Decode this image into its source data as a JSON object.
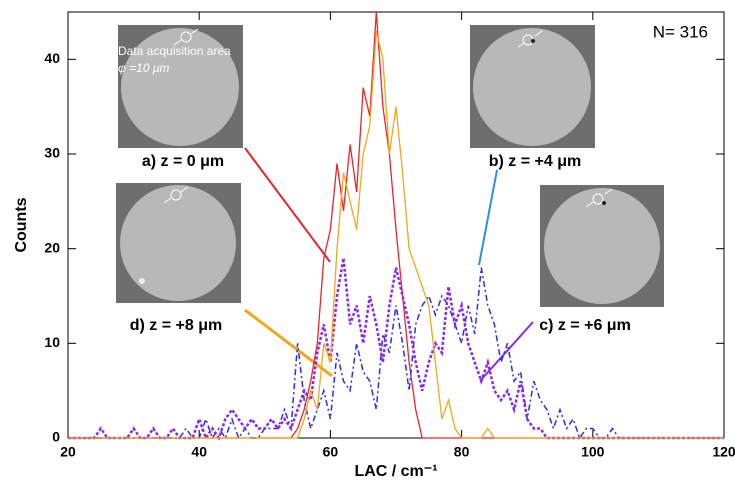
{
  "chart_data": {
    "type": "line",
    "x_label": "LAC / cm⁻¹",
    "y_label": "Counts",
    "annotations": [
      "N= 316",
      "Data acquisition area",
      "φ =10 μm"
    ],
    "x": [
      20,
      24,
      25,
      26,
      27,
      28,
      29,
      30,
      31,
      32,
      33,
      34,
      35,
      36,
      37,
      38,
      39,
      40,
      41,
      42,
      43,
      44,
      45,
      46,
      47,
      48,
      49,
      50,
      51,
      52,
      53,
      54,
      55,
      56,
      57,
      58,
      59,
      60,
      61,
      62,
      63,
      64,
      65,
      66,
      67,
      68,
      69,
      70,
      71,
      72,
      73,
      74,
      75,
      76,
      77,
      78,
      79,
      80,
      81,
      82,
      83,
      84,
      85,
      86,
      87,
      88,
      89,
      90,
      91,
      92,
      93,
      94,
      95,
      96,
      97,
      98,
      99,
      100,
      101,
      102,
      103,
      104,
      120
    ],
    "series": [
      {
        "name": "a) z = 0 μm",
        "color": "#e8262a",
        "style": "solid",
        "values": [
          0,
          0,
          0,
          0,
          0,
          0,
          0,
          0,
          0,
          0,
          0,
          0,
          0,
          0,
          0,
          0,
          0,
          0,
          0,
          0,
          0,
          0,
          0,
          0,
          0,
          0,
          0,
          0,
          0,
          0,
          0,
          0,
          1,
          3,
          6,
          10,
          19,
          22,
          29,
          24,
          31,
          26,
          37,
          34,
          45,
          35,
          30,
          22,
          15,
          8,
          3,
          0,
          0,
          0,
          0,
          0,
          0,
          0,
          0,
          0,
          0,
          0,
          0,
          0,
          0,
          0,
          0,
          0,
          0,
          0,
          0,
          0,
          0,
          0,
          0,
          0,
          0,
          0,
          0,
          0,
          0,
          0,
          0
        ]
      },
      {
        "name": "b) z = +4 μm",
        "color": "#2d2de0",
        "style": "dashdot",
        "values": [
          0,
          0,
          0,
          0,
          0,
          0,
          0,
          0,
          0,
          0,
          0,
          0,
          0,
          0,
          0,
          1,
          0,
          0,
          2,
          0,
          1,
          0,
          2,
          0,
          1,
          0,
          0,
          1,
          1,
          1,
          3,
          1,
          10,
          4,
          1,
          3,
          5,
          2,
          9,
          6,
          5,
          10,
          7,
          6,
          3,
          11,
          9,
          14,
          10,
          5,
          12,
          14,
          15,
          13,
          15,
          14,
          12,
          10,
          14,
          11,
          18,
          14,
          12,
          8,
          10,
          6,
          7,
          2,
          6,
          4,
          3,
          1,
          3,
          1,
          2,
          0,
          1,
          1,
          0,
          0,
          1,
          0,
          0
        ]
      },
      {
        "name": "c) z = +6 μm",
        "color": "#8a2be2",
        "style": "dotted",
        "values": [
          0,
          0,
          1,
          0,
          0,
          0,
          0,
          1,
          0,
          0,
          1,
          0,
          0,
          1,
          0,
          0,
          0,
          2,
          0,
          1,
          0,
          2,
          3,
          2,
          1,
          2,
          1,
          1,
          2,
          1,
          2,
          1,
          3,
          5,
          4,
          9,
          12,
          8,
          15,
          19,
          12,
          14,
          10,
          15,
          12,
          8,
          14,
          18,
          15,
          12,
          8,
          5,
          8,
          10,
          9,
          16,
          12,
          14,
          10,
          8,
          6,
          8,
          5,
          4,
          5,
          3,
          6,
          2,
          1,
          1,
          0,
          0,
          0,
          0,
          0,
          0,
          0,
          0,
          0,
          0,
          0,
          0,
          0
        ]
      },
      {
        "name": "d) z = +8 μm",
        "color": "#f0a81c",
        "style": "solid",
        "values": [
          0,
          0,
          0,
          0,
          0,
          0,
          0,
          0,
          0,
          0,
          0,
          0,
          0,
          0,
          0,
          0,
          0,
          0,
          0,
          0,
          0,
          0,
          0,
          0,
          0,
          0,
          0,
          0,
          0,
          0,
          0,
          0,
          0,
          2,
          5,
          3,
          10,
          8,
          20,
          28,
          25,
          22,
          30,
          33,
          43,
          40,
          30,
          35,
          28,
          20,
          18,
          16,
          14,
          8,
          2,
          4,
          1,
          0,
          0,
          0,
          0,
          1,
          0,
          0,
          0,
          0,
          0,
          0,
          0,
          0,
          0,
          0,
          0,
          0,
          0,
          0,
          0,
          0,
          0,
          0,
          0,
          0,
          0
        ]
      }
    ],
    "xlim": [
      20,
      120
    ],
    "ylim": [
      0,
      45
    ],
    "xticks": [
      20,
      40,
      60,
      80,
      100,
      120
    ],
    "yticks": [
      0,
      10,
      20,
      30,
      40
    ]
  }
}
